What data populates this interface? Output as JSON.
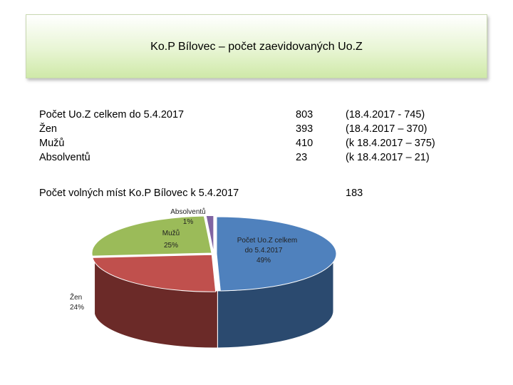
{
  "title": "Ko.P Bílovec – počet zaevidovaných Uo.Z",
  "stats": {
    "rows": [
      {
        "label": "Počet  Uo.Z celkem do 5.4.2017",
        "value": "803",
        "prev": "(18.4.2017 - 745)"
      },
      {
        "label": "Žen",
        "value": "393",
        "prev": "(18.4.2017 – 370)"
      },
      {
        "label": "Mužů",
        "value": "410",
        "prev": "(k 18.4.2017 – 375)"
      },
      {
        "label": "Absolventů",
        "value": "23",
        "prev": "(k 18.4.2017 – 21)"
      }
    ],
    "vacancies_label": "Počet volných míst Ko.P Bílovec k 5.4.2017",
    "vacancies_value": "183"
  },
  "chart_data": {
    "type": "pie",
    "style": "3d",
    "slices": [
      {
        "label": "Počet  Uo.Z celkem do 5.4.2017",
        "percent_label": "49%",
        "value": 49,
        "color": "#4f81bd",
        "side_color": "#2b4a6f"
      },
      {
        "label": "Žen",
        "percent_label": "24%",
        "value": 24,
        "color": "#c0504d",
        "side_color": "#6b2a28"
      },
      {
        "label": "Mužů",
        "percent_label": "25%",
        "value": 25,
        "color": "#9bbb59",
        "side_color": "#5a7030"
      },
      {
        "label": "Absolventů",
        "percent_label": "1%",
        "value": 1,
        "color": "#8064a2",
        "side_color": "#4a3a60"
      }
    ]
  }
}
